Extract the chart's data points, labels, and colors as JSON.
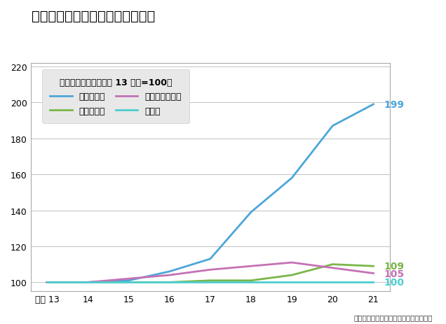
{
  "title": "情報流通量と消費量の推移グラフ",
  "legend_title": "各情報量の推移（平成 13 年度=100）",
  "x_labels": [
    "平成 13",
    "14",
    "15",
    "16",
    "17",
    "18",
    "19",
    "20",
    "21"
  ],
  "ylim": [
    95,
    222
  ],
  "yticks": [
    100,
    120,
    140,
    160,
    180,
    200,
    220
  ],
  "series": {
    "流通情報量": {
      "values": [
        100,
        100,
        101,
        106,
        113,
        139,
        158,
        187,
        199
      ],
      "color": "#4da6d9",
      "linewidth": 2.0,
      "label_value": "199",
      "label_yoffset": 0
    },
    "消費情報量": {
      "values": [
        100,
        100,
        100,
        100,
        101,
        101,
        104,
        110,
        109
      ],
      "color": "#7ab648",
      "linewidth": 2.0,
      "label_value": "109",
      "label_yoffset": 0
    },
    "実質国内総生産": {
      "values": [
        100,
        100,
        102,
        104,
        107,
        109,
        111,
        108,
        105
      ],
      "color": "#c471b5",
      "linewidth": 2.0,
      "label_value": "105",
      "label_yoffset": 0
    },
    "総人口": {
      "values": [
        100,
        100,
        100,
        100,
        100,
        100,
        100,
        100,
        100
      ],
      "color": "#4ecece",
      "linewidth": 2.0,
      "label_value": "100",
      "label_yoffset": 0
    }
  },
  "series_order": [
    "流通情報量",
    "消費情報量",
    "実質国内総生産",
    "総人口"
  ],
  "footer": "（総務省：情報流通インデックスより）",
  "background_color": "#ffffff",
  "legend_bg_color": "#e8e8e8",
  "title_fontsize": 14,
  "axis_fontsize": 9,
  "legend_fontsize": 9,
  "annotation_fontsize": 10
}
